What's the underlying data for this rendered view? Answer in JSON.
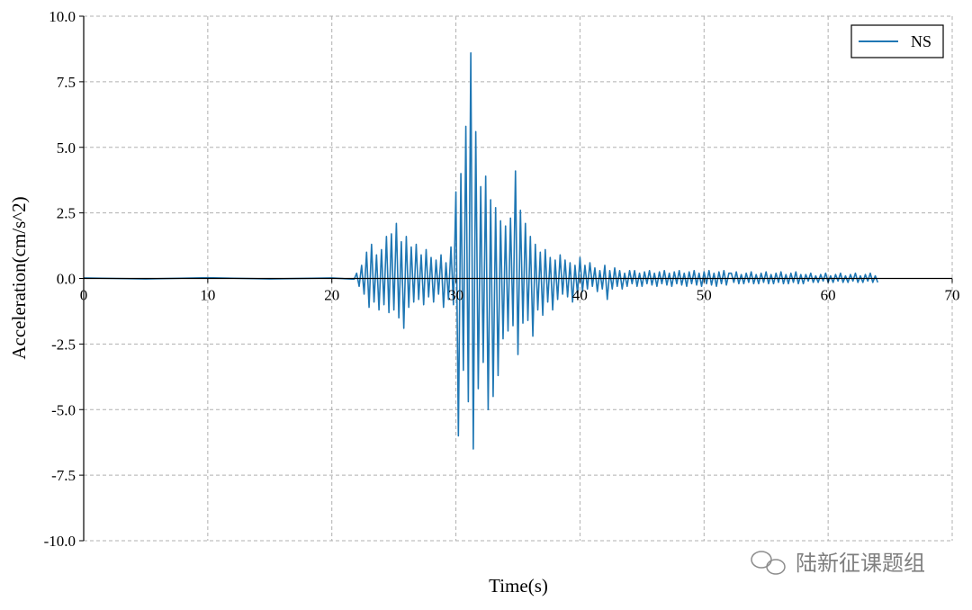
{
  "chart_data": {
    "type": "line",
    "xlabel": "Time(s)",
    "ylabel": "Acceleration(cm/s^2)",
    "watermark": "陆新征课题组",
    "xlim": [
      0,
      70
    ],
    "xticks": [
      0,
      10,
      20,
      30,
      40,
      50,
      60,
      70
    ],
    "ylim": [
      -10,
      10
    ],
    "yticks": [
      {
        "value": -10,
        "label": "-10.0"
      },
      -7.5,
      {
        "value": -5,
        "label": "-5.0"
      },
      -2.5,
      {
        "value": 0,
        "label": "0.0"
      },
      2.5,
      {
        "value": 5,
        "label": "5.0"
      },
      7.5,
      {
        "value": 10,
        "label": "10.0"
      }
    ],
    "grid": true,
    "legend": "upper right",
    "x": [
      0,
      5,
      10,
      15,
      20,
      21.8,
      22.0,
      22.2,
      22.4,
      22.6,
      22.8,
      23.0,
      23.2,
      23.4,
      23.6,
      23.8,
      24.0,
      24.2,
      24.4,
      24.6,
      24.8,
      25.0,
      25.2,
      25.4,
      25.6,
      25.8,
      26.0,
      26.2,
      26.4,
      26.6,
      26.8,
      27.0,
      27.2,
      27.4,
      27.6,
      27.8,
      28.0,
      28.2,
      28.4,
      28.6,
      28.8,
      29.0,
      29.2,
      29.4,
      29.6,
      29.8,
      30.0,
      30.2,
      30.4,
      30.6,
      30.8,
      31.0,
      31.2,
      31.4,
      31.6,
      31.8,
      32.0,
      32.2,
      32.4,
      32.6,
      32.8,
      33.0,
      33.2,
      33.4,
      33.6,
      33.8,
      34.0,
      34.2,
      34.4,
      34.6,
      34.8,
      35.0,
      35.2,
      35.4,
      35.6,
      35.8,
      36.0,
      36.2,
      36.4,
      36.6,
      36.8,
      37.0,
      37.2,
      37.4,
      37.6,
      37.8,
      38.0,
      38.2,
      38.4,
      38.6,
      38.8,
      39.0,
      39.2,
      39.4,
      39.6,
      39.8,
      40.0,
      40.2,
      40.4,
      40.6,
      40.8,
      41.0,
      41.2,
      41.4,
      41.6,
      41.8,
      42.0,
      42.2,
      42.4,
      42.6,
      42.8,
      43.0,
      43.2,
      43.4,
      43.6,
      43.8,
      44.0,
      44.2,
      44.4,
      44.6,
      44.8,
      45.0,
      45.2,
      45.4,
      45.6,
      45.8,
      46.0,
      46.2,
      46.4,
      46.6,
      46.8,
      47.0,
      47.2,
      47.4,
      47.6,
      47.8,
      48.0,
      48.2,
      48.4,
      48.6,
      48.8,
      49.0,
      49.2,
      49.4,
      49.6,
      49.8,
      50.0,
      50.2,
      50.4,
      50.6,
      50.8,
      51.0,
      51.2,
      51.4,
      51.6,
      51.8,
      52.0,
      52.2,
      52.4,
      52.6,
      52.8,
      53.0,
      53.2,
      53.4,
      53.6,
      53.8,
      54.0,
      54.2,
      54.4,
      54.6,
      54.8,
      55.0,
      55.2,
      55.4,
      55.6,
      55.8,
      56.0,
      56.2,
      56.4,
      56.6,
      56.8,
      57.0,
      57.2,
      57.4,
      57.6,
      57.8,
      58.0,
      58.2,
      58.4,
      58.6,
      58.8,
      59.0,
      59.2,
      59.4,
      59.6,
      59.8,
      60.0,
      60.2,
      60.4,
      60.6,
      60.8,
      61.0,
      61.2,
      61.4,
      61.6,
      61.8,
      62.0,
      62.2,
      62.4,
      62.6,
      62.8,
      63.0,
      63.2,
      63.4,
      63.6,
      63.8,
      64.0
    ],
    "series": [
      {
        "name": "NS",
        "color": "#1f77b4",
        "values": [
          0.02,
          -0.02,
          0.03,
          -0.02,
          0.02,
          -0.03,
          0.2,
          -0.3,
          0.5,
          -0.6,
          1.0,
          -1.1,
          1.3,
          -0.9,
          0.9,
          -1.2,
          1.1,
          -1.0,
          1.6,
          -1.3,
          1.7,
          -1.2,
          2.1,
          -1.5,
          1.4,
          -1.9,
          1.6,
          -1.1,
          1.2,
          -0.9,
          1.3,
          -0.8,
          0.9,
          -1.0,
          1.1,
          -0.7,
          0.8,
          -0.9,
          0.7,
          -0.6,
          0.9,
          -1.1,
          0.6,
          -0.8,
          1.2,
          -1.0,
          3.3,
          -6.0,
          4.0,
          -3.5,
          5.8,
          -4.7,
          8.6,
          -6.5,
          5.6,
          -4.2,
          3.5,
          -3.2,
          3.9,
          -5.0,
          3.0,
          -4.5,
          2.7,
          -3.7,
          2.2,
          -2.3,
          2.0,
          -2.0,
          2.3,
          -1.8,
          4.1,
          -2.9,
          2.6,
          -1.7,
          2.1,
          -1.6,
          1.6,
          -2.2,
          1.3,
          -1.2,
          1.0,
          -1.4,
          1.1,
          -0.9,
          0.8,
          -1.2,
          0.7,
          -0.8,
          0.9,
          -0.6,
          0.7,
          -0.7,
          0.6,
          -0.9,
          0.5,
          -0.6,
          0.8,
          -0.5,
          0.5,
          -0.4,
          0.6,
          -0.3,
          0.4,
          -0.5,
          0.3,
          -0.4,
          0.5,
          -0.8,
          0.3,
          -0.4,
          0.4,
          -0.3,
          0.3,
          -0.4,
          0.2,
          -0.3,
          0.3,
          -0.2,
          0.3,
          -0.3,
          0.2,
          -0.3,
          0.25,
          -0.2,
          0.3,
          -0.25,
          0.2,
          -0.3,
          0.25,
          -0.2,
          0.3,
          -0.25,
          0.2,
          -0.3,
          0.25,
          -0.2,
          0.3,
          -0.25,
          0.2,
          -0.3,
          0.25,
          -0.2,
          0.3,
          -0.25,
          0.2,
          -0.3,
          0.25,
          -0.2,
          0.3,
          -0.25,
          0.2,
          -0.3,
          0.25,
          -0.2,
          0.3,
          -0.25,
          0.2,
          0.2,
          -0.15,
          0.25,
          -0.2,
          0.15,
          -0.2,
          0.2,
          -0.15,
          0.25,
          -0.2,
          0.15,
          -0.2,
          0.2,
          -0.15,
          0.25,
          -0.2,
          0.15,
          -0.2,
          0.2,
          -0.15,
          0.25,
          -0.2,
          0.15,
          -0.2,
          0.2,
          -0.15,
          0.25,
          -0.2,
          0.15,
          -0.2,
          0.15,
          -0.1,
          0.2,
          -0.15,
          0.1,
          -0.15,
          0.15,
          -0.1,
          0.2,
          -0.15,
          0.1,
          -0.15,
          0.15,
          -0.1,
          0.2,
          -0.15,
          0.1,
          -0.15,
          0.15,
          -0.1,
          0.2,
          -0.15,
          0.1,
          -0.15,
          0.15,
          -0.1,
          0.2,
          -0.15,
          0.1,
          -0.15
        ]
      }
    ]
  }
}
